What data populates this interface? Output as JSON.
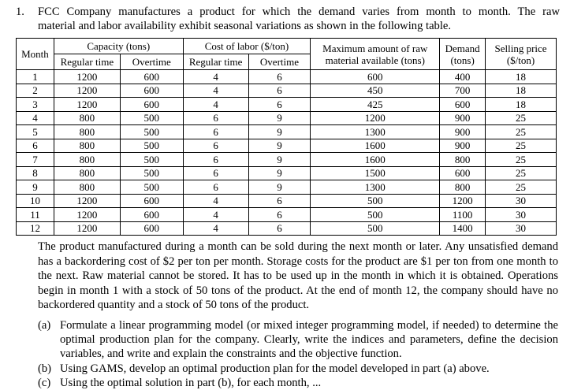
{
  "problem": {
    "number": "1.",
    "intro_line1": "FCC Company manufactures a product for which the demand varies from month to month. The raw",
    "intro_line2": "material and labor availability exhibit seasonal variations as shown in the following table."
  },
  "table": {
    "headers": {
      "month": "Month",
      "capacity_group": "Capacity (tons)",
      "capacity_regular": "Regular time",
      "capacity_overtime": "Overtime",
      "labor_group": "Cost of labor ($/ton)",
      "labor_regular": "Regular time",
      "labor_overtime": "Overtime",
      "raw_material_line1": "Maximum amount of raw",
      "raw_material_line2": "material available (tons)",
      "demand_line1": "Demand",
      "demand_line2": "(tons)",
      "price_line1": "Selling price",
      "price_line2": "($/ton)"
    },
    "rows": [
      {
        "month": "1",
        "cap_rt": "1200",
        "cap_ot": "600",
        "cost_rt": "4",
        "cost_ot": "6",
        "raw": "600",
        "demand": "400",
        "price": "18"
      },
      {
        "month": "2",
        "cap_rt": "1200",
        "cap_ot": "600",
        "cost_rt": "4",
        "cost_ot": "6",
        "raw": "450",
        "demand": "700",
        "price": "18"
      },
      {
        "month": "3",
        "cap_rt": "1200",
        "cap_ot": "600",
        "cost_rt": "4",
        "cost_ot": "6",
        "raw": "425",
        "demand": "600",
        "price": "18"
      },
      {
        "month": "4",
        "cap_rt": "800",
        "cap_ot": "500",
        "cost_rt": "6",
        "cost_ot": "9",
        "raw": "1200",
        "demand": "900",
        "price": "25"
      },
      {
        "month": "5",
        "cap_rt": "800",
        "cap_ot": "500",
        "cost_rt": "6",
        "cost_ot": "9",
        "raw": "1300",
        "demand": "900",
        "price": "25"
      },
      {
        "month": "6",
        "cap_rt": "800",
        "cap_ot": "500",
        "cost_rt": "6",
        "cost_ot": "9",
        "raw": "1600",
        "demand": "900",
        "price": "25"
      },
      {
        "month": "7",
        "cap_rt": "800",
        "cap_ot": "500",
        "cost_rt": "6",
        "cost_ot": "9",
        "raw": "1600",
        "demand": "800",
        "price": "25"
      },
      {
        "month": "8",
        "cap_rt": "800",
        "cap_ot": "500",
        "cost_rt": "6",
        "cost_ot": "9",
        "raw": "1500",
        "demand": "600",
        "price": "25"
      },
      {
        "month": "9",
        "cap_rt": "800",
        "cap_ot": "500",
        "cost_rt": "6",
        "cost_ot": "9",
        "raw": "1300",
        "demand": "800",
        "price": "25"
      },
      {
        "month": "10",
        "cap_rt": "1200",
        "cap_ot": "600",
        "cost_rt": "4",
        "cost_ot": "6",
        "raw": "500",
        "demand": "1200",
        "price": "30"
      },
      {
        "month": "11",
        "cap_rt": "1200",
        "cap_ot": "600",
        "cost_rt": "4",
        "cost_ot": "6",
        "raw": "500",
        "demand": "1100",
        "price": "30"
      },
      {
        "month": "12",
        "cap_rt": "1200",
        "cap_ot": "600",
        "cost_rt": "4",
        "cost_ot": "6",
        "raw": "500",
        "demand": "1400",
        "price": "30"
      }
    ]
  },
  "paragraph": "The product manufactured during a month can be sold during the next month or later. Any unsatisfied demand has a backordering cost of $2 per ton per month. Storage costs for the product are $1 per ton from one month to the next. Raw material cannot be stored. It has to be used up in the month in which it is obtained. Operations begin in month 1 with a stock of 50 tons of the product. At the end of month 12, the company should have no backordered quantity and a stock of 50 tons of the product.",
  "parts": [
    {
      "label": "(a)",
      "text": "Formulate a linear programming model (or mixed integer programming model, if needed) to determine the optimal production plan for the company. Clearly, write the indices and parameters, define the decision variables, and write and explain the constraints and the objective function."
    },
    {
      "label": "(b)",
      "text": "Using GAMS, develop an optimal production plan for the model developed in part (a) above."
    },
    {
      "label": "(c)",
      "text": "Using the optimal solution in part (b), for each month, ..."
    }
  ]
}
